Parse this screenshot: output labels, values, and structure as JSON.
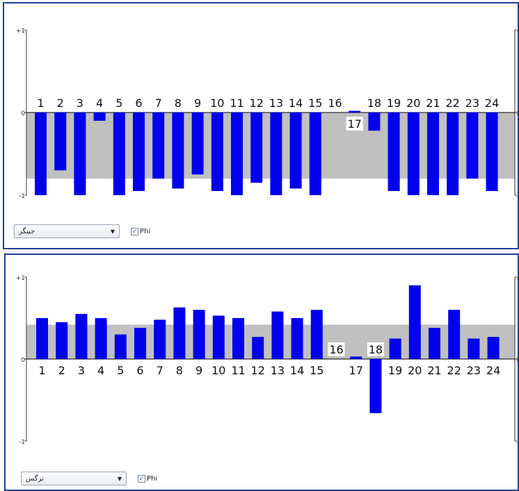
{
  "chart_data": [
    {
      "type": "bar",
      "categories": [
        "1",
        "2",
        "3",
        "4",
        "5",
        "6",
        "7",
        "8",
        "9",
        "10",
        "11",
        "12",
        "13",
        "14",
        "15",
        "16",
        "17",
        "18",
        "19",
        "20",
        "21",
        "22",
        "23",
        "24"
      ],
      "values": [
        -1.0,
        -0.7,
        -1.0,
        -0.1,
        -1.0,
        -0.95,
        -0.8,
        -0.92,
        -0.75,
        -0.95,
        -1.0,
        -0.85,
        -1.0,
        -0.92,
        -1.0,
        0,
        0.02,
        -0.22,
        -0.95,
        -1.0,
        -1.0,
        -1.0,
        -0.8,
        -0.95
      ],
      "ylim": [
        -1,
        1
      ],
      "band": [
        -0.8,
        0
      ],
      "y_tick_labels": [
        "+1",
        "0",
        "-1"
      ],
      "label_position": "above",
      "grid": false,
      "bar_color": "#0000ee",
      "band_color": "#c0c0c0"
    },
    {
      "type": "bar",
      "categories": [
        "1",
        "2",
        "3",
        "4",
        "5",
        "6",
        "7",
        "8",
        "9",
        "10",
        "11",
        "12",
        "13",
        "14",
        "15",
        "16",
        "17",
        "18",
        "19",
        "20",
        "21",
        "22",
        "23",
        "24"
      ],
      "values": [
        0.5,
        0.45,
        0.55,
        0.5,
        0.3,
        0.38,
        0.48,
        0.63,
        0.6,
        0.53,
        0.5,
        0.27,
        0.58,
        0.5,
        0.6,
        0,
        0.03,
        -0.66,
        0.25,
        0.9,
        0.38,
        0.6,
        0.25,
        0.27
      ],
      "ylim": [
        -1,
        1
      ],
      "band": [
        0,
        0.42
      ],
      "y_tick_labels": [
        "+1",
        "0",
        "-1"
      ],
      "label_position": "below",
      "grid": false,
      "bar_color": "#0000ee",
      "band_color": "#c0c0c0"
    }
  ],
  "panels": [
    {
      "dropdown_value": "جینگر",
      "checkbox_label": "Phi",
      "checkbox_checked": true,
      "check_mark": "✓"
    },
    {
      "dropdown_value": "نرگس",
      "checkbox_label": "Phi",
      "checkbox_checked": true,
      "check_mark": "✓"
    }
  ]
}
